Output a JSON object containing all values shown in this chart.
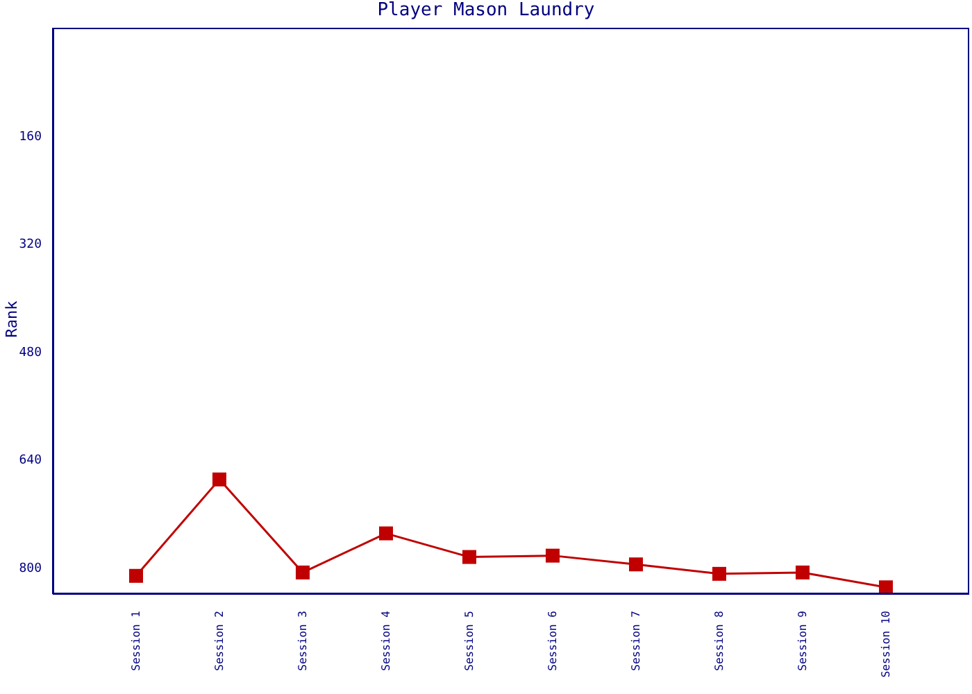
{
  "chart_data": {
    "type": "line",
    "title": "Player Mason Laundry",
    "ylabel": "Rank",
    "categories": [
      "Session 1",
      "Session 2",
      "Session 3",
      "Session 4",
      "Session 5",
      "Session 6",
      "Session 7",
      "Session 8",
      "Session 9",
      "Session 10"
    ],
    "series": [
      {
        "color": "#c00000",
        "values": [
          813,
          670,
          808,
          750,
          785,
          783,
          796,
          810,
          808,
          830
        ]
      }
    ],
    "ylim": [
      840,
      0
    ],
    "yticks": [
      160,
      320,
      480,
      640,
      800
    ],
    "grid": false,
    "legend": false,
    "marker": "square",
    "line_style": "solid"
  }
}
